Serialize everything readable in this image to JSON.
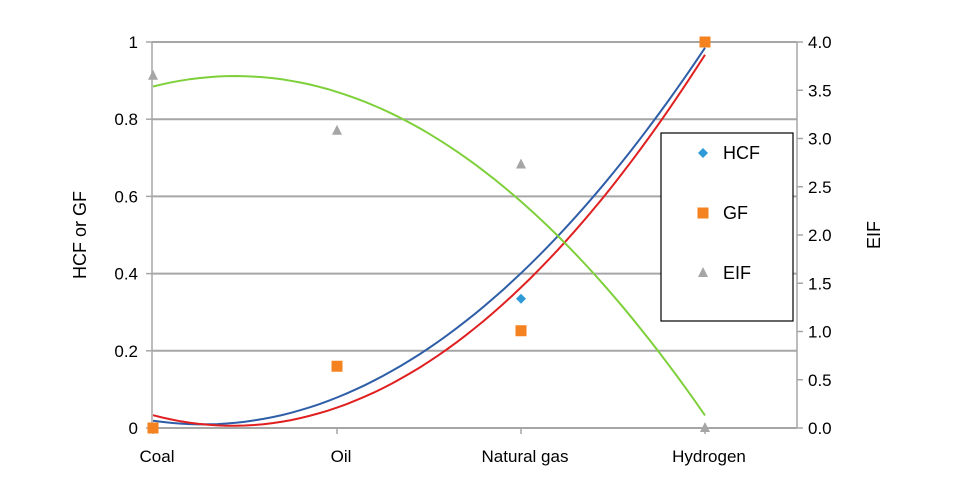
{
  "chart_data": {
    "type": "scatter",
    "categories": [
      "Coal",
      "Oil",
      "Natural gas",
      "Hydrogen"
    ],
    "ylabel": "HCF or GF",
    "ylabel_right": "EIF",
    "ylim": [
      0,
      1
    ],
    "ylim_right": [
      0,
      4
    ],
    "yticks": [
      "0",
      "0.2",
      "0.4",
      "0.6",
      "0.8",
      "1"
    ],
    "yticks_right": [
      "0.0",
      "0.5",
      "1.0",
      "1.5",
      "2.0",
      "2.5",
      "3.0",
      "3.5",
      "4.0"
    ],
    "grid": true,
    "legend_position": "right",
    "series": [
      {
        "name": "HCF",
        "axis": "left",
        "marker": "diamond",
        "color": "#2e9ad8",
        "values": [
          0,
          0.16,
          0.335,
          1
        ],
        "trend": {
          "kind": "polynomial-2",
          "color": "#2f5ea8",
          "values": [
            0.022,
            0.07,
            0.41,
            0.982
          ]
        }
      },
      {
        "name": "GF",
        "axis": "left",
        "marker": "square",
        "color": "#f58220",
        "values": [
          0,
          0.16,
          0.252,
          1
        ],
        "trend": {
          "kind": "polynomial-2",
          "color": "#e02020",
          "values": [
            0.035,
            0.047,
            0.37,
            0.965
          ]
        }
      },
      {
        "name": "EIF",
        "axis": "right",
        "marker": "triangle",
        "color": "#a6a6a6",
        "values": [
          3.65,
          3.08,
          2.73,
          0
        ],
        "trend": {
          "kind": "polynomial-2",
          "color": "#7ed03a",
          "values": [
            3.55,
            3.45,
            2.38,
            0.12
          ]
        }
      }
    ]
  }
}
